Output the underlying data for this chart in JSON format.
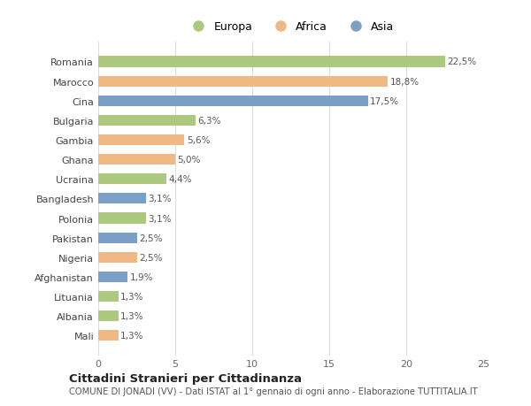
{
  "categories": [
    "Romania",
    "Marocco",
    "Cina",
    "Bulgaria",
    "Gambia",
    "Ghana",
    "Ucraina",
    "Bangladesh",
    "Polonia",
    "Pakistan",
    "Nigeria",
    "Afghanistan",
    "Lituania",
    "Albania",
    "Mali"
  ],
  "values": [
    22.5,
    18.8,
    17.5,
    6.3,
    5.6,
    5.0,
    4.4,
    3.1,
    3.1,
    2.5,
    2.5,
    1.9,
    1.3,
    1.3,
    1.3
  ],
  "labels": [
    "22,5%",
    "18,8%",
    "17,5%",
    "6,3%",
    "5,6%",
    "5,0%",
    "4,4%",
    "3,1%",
    "3,1%",
    "2,5%",
    "2,5%",
    "1,9%",
    "1,3%",
    "1,3%",
    "1,3%"
  ],
  "continents": [
    "Europa",
    "Africa",
    "Asia",
    "Europa",
    "Africa",
    "Africa",
    "Europa",
    "Asia",
    "Europa",
    "Asia",
    "Africa",
    "Asia",
    "Europa",
    "Europa",
    "Africa"
  ],
  "colors": {
    "Europa": "#adc97e",
    "Africa": "#f0b884",
    "Asia": "#7b9fc7"
  },
  "legend_labels": [
    "Europa",
    "Africa",
    "Asia"
  ],
  "title": "Cittadini Stranieri per Cittadinanza",
  "subtitle": "COMUNE DI JONADI (VV) - Dati ISTAT al 1° gennaio di ogni anno - Elaborazione TUTTITALIA.IT",
  "xlim": [
    0,
    25
  ],
  "xticks": [
    0,
    5,
    10,
    15,
    20,
    25
  ],
  "background_color": "#ffffff",
  "grid_color": "#dddddd",
  "bar_height": 0.55
}
